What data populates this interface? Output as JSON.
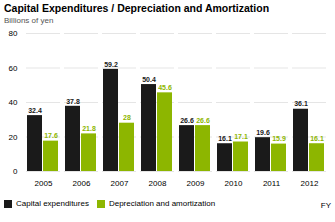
{
  "chart_data": {
    "type": "bar",
    "title": "Capital Expenditures / Depreciation and Amortization",
    "ylabel": "Billions of yen",
    "xlabel": "FY",
    "categories": [
      "2005",
      "2006",
      "2007",
      "2008",
      "2009",
      "2010",
      "2011",
      "2012"
    ],
    "series": [
      {
        "name": "Capital expenditures",
        "color": "#1a1a1a",
        "values": [
          32.4,
          37.8,
          59.2,
          50.4,
          26.6,
          16.1,
          19.6,
          36.1
        ]
      },
      {
        "name": "Depreciation and amortization",
        "color": "#8db600",
        "values": [
          17.6,
          21.8,
          28.0,
          45.6,
          26.6,
          17.1,
          15.9,
          16.1
        ]
      }
    ],
    "ylim": [
      0,
      80
    ],
    "yticks": [
      0,
      20,
      40,
      60,
      80
    ],
    "grid": true,
    "legend": "bottom",
    "data_labels": true
  }
}
